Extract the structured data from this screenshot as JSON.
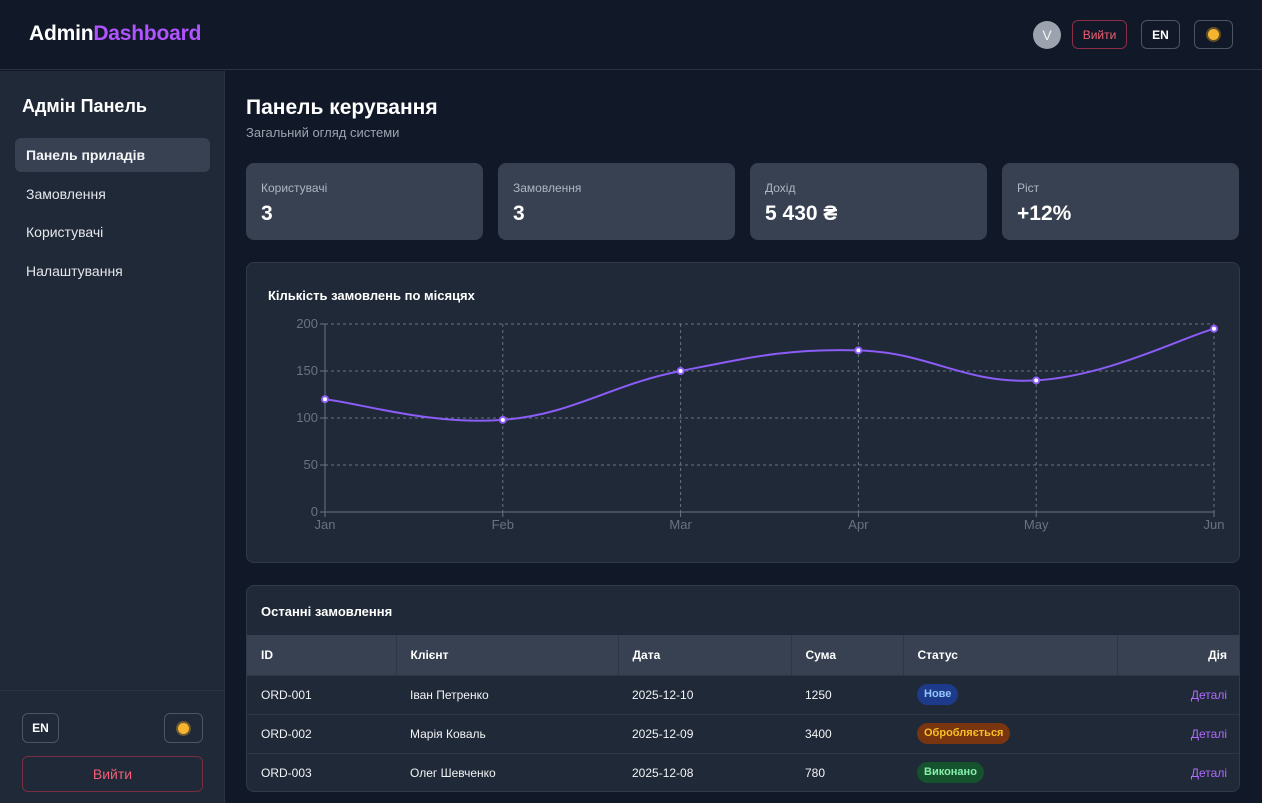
{
  "header": {
    "brand_part1": "Admin",
    "brand_part2": "Dashboard",
    "avatar_initial": "V",
    "logout_label": "Вийти",
    "lang_label": "EN"
  },
  "sidebar": {
    "title": "Адмін Панель",
    "items": [
      {
        "label": "Панель приладів",
        "active": true
      },
      {
        "label": "Замовлення",
        "active": false
      },
      {
        "label": "Користувачі",
        "active": false
      },
      {
        "label": "Налаштування",
        "active": false
      }
    ],
    "lang_label": "EN",
    "logout_label": "Вийти"
  },
  "main": {
    "title": "Панель керування",
    "subtitle": "Загальний огляд системи"
  },
  "stats": [
    {
      "label": "Користувачі",
      "value": "3"
    },
    {
      "label": "Замовлення",
      "value": "3"
    },
    {
      "label": "Дохід",
      "value": "5 430 ₴"
    },
    {
      "label": "Ріст",
      "value": "+12%"
    }
  ],
  "chart_data": {
    "type": "line",
    "title": "Кількість замовлень по місяцях",
    "categories": [
      "Jan",
      "Feb",
      "Mar",
      "Apr",
      "May",
      "Jun"
    ],
    "series": [
      {
        "values": [
          120,
          98,
          150,
          172,
          140,
          195
        ]
      }
    ],
    "ylim": [
      0,
      200
    ],
    "yticks": [
      0,
      50,
      100,
      150,
      200
    ],
    "grid": true,
    "line_color": "#8b5cf6"
  },
  "orders": {
    "title": "Останні замовлення",
    "columns": [
      "ID",
      "Клієнт",
      "Дата",
      "Сума",
      "Статус",
      "Дія"
    ],
    "rows": [
      {
        "id": "ORD-001",
        "client": "Іван Петренко",
        "date": "2025-12-10",
        "sum": "1250",
        "status": "Нове",
        "status_kind": "new",
        "action": "Деталі"
      },
      {
        "id": "ORD-002",
        "client": "Марія Коваль",
        "date": "2025-12-09",
        "sum": "3400",
        "status": "Обробляється",
        "status_kind": "proc",
        "action": "Деталі"
      },
      {
        "id": "ORD-003",
        "client": "Олег Шевченко",
        "date": "2025-12-08",
        "sum": "780",
        "status": "Виконано",
        "status_kind": "done",
        "action": "Деталі"
      }
    ]
  },
  "icons": {
    "theme": "sun-icon"
  },
  "colors": {
    "accent": "#b054ff",
    "danger": "#f25f74"
  }
}
